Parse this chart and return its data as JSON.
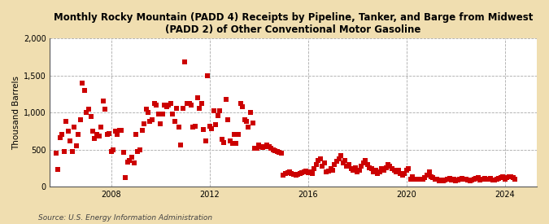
{
  "title": "Monthly Rocky Mountain (PADD 4) Receipts by Pipeline, Tanker, and Barge from Midwest\n(PADD 2) of Other Conventional Motor Gasoline",
  "ylabel": "Thousand Barrels",
  "source": "Source: U.S. Energy Information Administration",
  "fig_bg_color": "#f0deb0",
  "plot_bg_color": "#ffffff",
  "point_color": "#cc0000",
  "marker_size": 5,
  "ylim": [
    0,
    2000
  ],
  "yticks": [
    0,
    500,
    1000,
    1500,
    2000
  ],
  "ytick_labels": [
    "0",
    "500",
    "1,000",
    "1,500",
    "2,000"
  ],
  "xlim_start": 2005.5,
  "xlim_end": 2025.3,
  "xticks": [
    2008,
    2012,
    2016,
    2020,
    2024
  ],
  "data": {
    "dates": [
      2005.75,
      2005.83,
      2005.92,
      2006.0,
      2006.08,
      2006.17,
      2006.25,
      2006.33,
      2006.42,
      2006.5,
      2006.58,
      2006.67,
      2006.75,
      2006.83,
      2006.92,
      2007.0,
      2007.08,
      2007.17,
      2007.25,
      2007.33,
      2007.42,
      2007.5,
      2007.58,
      2007.67,
      2007.75,
      2007.83,
      2007.92,
      2008.0,
      2008.08,
      2008.17,
      2008.25,
      2008.33,
      2008.42,
      2008.5,
      2008.58,
      2008.67,
      2008.75,
      2008.83,
      2008.92,
      2009.0,
      2009.08,
      2009.17,
      2009.25,
      2009.33,
      2009.42,
      2009.5,
      2009.58,
      2009.67,
      2009.75,
      2009.83,
      2009.92,
      2010.0,
      2010.08,
      2010.17,
      2010.25,
      2010.33,
      2010.42,
      2010.5,
      2010.58,
      2010.67,
      2010.75,
      2010.83,
      2010.92,
      2011.0,
      2011.08,
      2011.17,
      2011.25,
      2011.33,
      2011.42,
      2011.5,
      2011.58,
      2011.67,
      2011.75,
      2011.83,
      2011.92,
      2012.0,
      2012.08,
      2012.17,
      2012.25,
      2012.33,
      2012.42,
      2012.5,
      2012.58,
      2012.67,
      2012.75,
      2012.83,
      2012.92,
      2013.0,
      2013.08,
      2013.17,
      2013.25,
      2013.33,
      2013.42,
      2013.5,
      2013.58,
      2013.67,
      2013.75,
      2013.83,
      2013.92,
      2014.0,
      2014.08,
      2014.17,
      2014.25,
      2014.33,
      2014.42,
      2014.5,
      2014.58,
      2014.67,
      2014.75,
      2014.83,
      2014.92,
      2015.0,
      2015.08,
      2015.17,
      2015.25,
      2015.33,
      2015.42,
      2015.5,
      2015.58,
      2015.67,
      2015.75,
      2015.83,
      2015.92,
      2016.0,
      2016.08,
      2016.17,
      2016.25,
      2016.33,
      2016.42,
      2016.5,
      2016.58,
      2016.67,
      2016.75,
      2016.83,
      2016.92,
      2017.0,
      2017.08,
      2017.17,
      2017.25,
      2017.33,
      2017.42,
      2017.5,
      2017.58,
      2017.67,
      2017.75,
      2017.83,
      2017.92,
      2018.0,
      2018.08,
      2018.17,
      2018.25,
      2018.33,
      2018.42,
      2018.5,
      2018.58,
      2018.67,
      2018.75,
      2018.83,
      2018.92,
      2019.0,
      2019.08,
      2019.17,
      2019.25,
      2019.33,
      2019.42,
      2019.5,
      2019.58,
      2019.67,
      2019.75,
      2019.83,
      2019.92,
      2020.0,
      2020.08,
      2020.17,
      2020.25,
      2020.33,
      2020.42,
      2020.5,
      2020.58,
      2020.67,
      2020.75,
      2020.83,
      2020.92,
      2021.0,
      2021.08,
      2021.17,
      2021.25,
      2021.33,
      2021.42,
      2021.5,
      2021.58,
      2021.67,
      2021.75,
      2021.83,
      2021.92,
      2022.0,
      2022.08,
      2022.17,
      2022.25,
      2022.33,
      2022.42,
      2022.5,
      2022.58,
      2022.67,
      2022.75,
      2022.83,
      2022.92,
      2023.0,
      2023.08,
      2023.17,
      2023.25,
      2023.33,
      2023.42,
      2023.5,
      2023.58,
      2023.67,
      2023.75,
      2023.83,
      2023.92,
      2024.0,
      2024.08,
      2024.17,
      2024.25,
      2024.33,
      2024.42
    ],
    "values": [
      450,
      230,
      660,
      700,
      480,
      880,
      750,
      620,
      470,
      800,
      550,
      700,
      900,
      1400,
      1300,
      1000,
      1050,
      950,
      750,
      650,
      700,
      680,
      800,
      1160,
      1050,
      700,
      720,
      480,
      500,
      750,
      700,
      760,
      760,
      460,
      120,
      330,
      350,
      400,
      320,
      700,
      480,
      500,
      760,
      850,
      1050,
      1000,
      880,
      900,
      1120,
      1100,
      980,
      850,
      980,
      1100,
      1080,
      1100,
      1120,
      980,
      880,
      1060,
      800,
      560,
      1060,
      1680,
      1120,
      1120,
      1100,
      800,
      820,
      1200,
      1060,
      1120,
      770,
      620,
      1500,
      820,
      780,
      1020,
      840,
      960,
      1020,
      640,
      600,
      1180,
      900,
      620,
      580,
      700,
      580,
      700,
      1120,
      1080,
      900,
      880,
      800,
      1000,
      860,
      520,
      520,
      560,
      540,
      530,
      540,
      560,
      540,
      520,
      500,
      490,
      480,
      460,
      450,
      160,
      180,
      190,
      200,
      180,
      170,
      160,
      170,
      180,
      190,
      200,
      210,
      190,
      200,
      180,
      250,
      300,
      360,
      380,
      280,
      320,
      200,
      210,
      240,
      220,
      300,
      340,
      380,
      420,
      320,
      350,
      280,
      300,
      250,
      220,
      260,
      200,
      220,
      280,
      320,
      350,
      300,
      260,
      240,
      200,
      220,
      180,
      200,
      250,
      220,
      260,
      300,
      280,
      250,
      220,
      200,
      220,
      180,
      160,
      180,
      220,
      240,
      100,
      140,
      100,
      100,
      100,
      100,
      100,
      120,
      160,
      200,
      140,
      120,
      100,
      100,
      80,
      90,
      80,
      90,
      100,
      110,
      90,
      100,
      80,
      90,
      100,
      110,
      100,
      100,
      90,
      80,
      90,
      100,
      110,
      120,
      90,
      100,
      110,
      100,
      100,
      110,
      90,
      90,
      100,
      110,
      120,
      130,
      100,
      120,
      130,
      140,
      120,
      100
    ]
  }
}
